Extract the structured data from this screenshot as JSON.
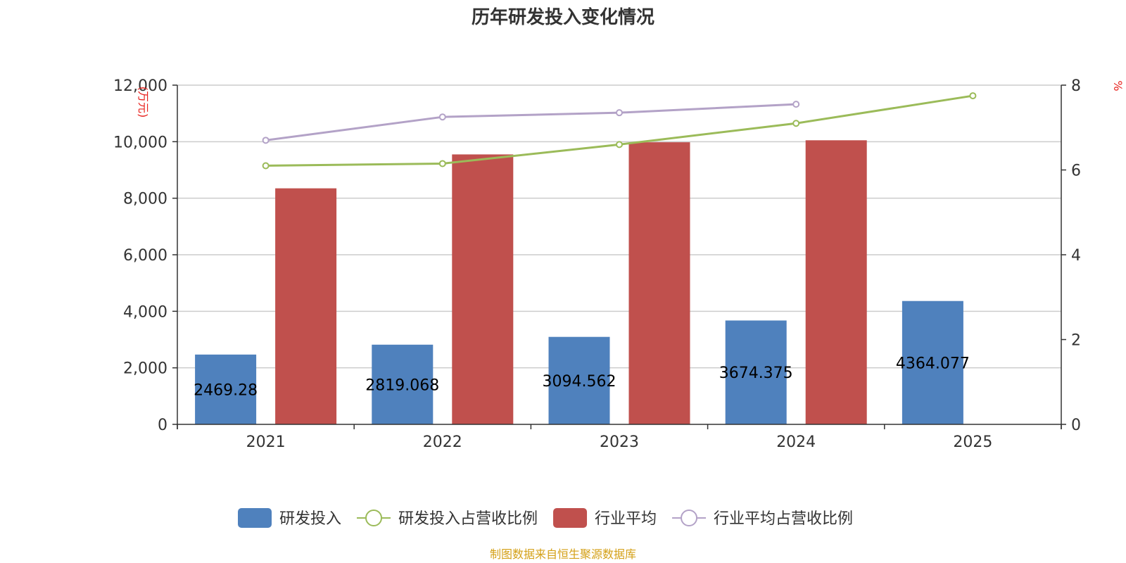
{
  "colors": {
    "rd": "#4f81bd",
    "rd_ratio": "#9bbb59",
    "industry": "#c0504d",
    "industry_ratio": "#b3a2c7",
    "unit_text": "#e8211d",
    "source_text": "#d4a017"
  },
  "chart_data": {
    "type": "bar",
    "title": "历年研发投入变化情况",
    "categories": [
      "2021",
      "2022",
      "2023",
      "2024",
      "2025"
    ],
    "y_left": {
      "unit": "(万元)",
      "range": [
        0,
        12000
      ],
      "ticks": [
        "0",
        "2,000",
        "4,000",
        "6,000",
        "8,000",
        "10,000",
        "12,000"
      ]
    },
    "y_right": {
      "unit": "%",
      "range": [
        0,
        8
      ],
      "ticks": [
        "0",
        "2",
        "4",
        "6",
        "8"
      ]
    },
    "grid": true,
    "legend_position": "bottom",
    "series": [
      {
        "name": "研发投入",
        "type": "bar",
        "axis": "left",
        "values": [
          2469.28,
          2819.068,
          3094.562,
          3674.375,
          4364.077
        ],
        "labels": [
          "2469.28",
          "2819.068",
          "3094.562",
          "3674.375",
          "4364.077"
        ]
      },
      {
        "name": "研发投入占营收比例",
        "type": "line",
        "axis": "right",
        "values": [
          6.1,
          6.15,
          6.6,
          7.1,
          7.75
        ]
      },
      {
        "name": "行业平均",
        "type": "bar",
        "axis": "left",
        "values": [
          8350,
          9550,
          9980,
          10050,
          null
        ]
      },
      {
        "name": "行业平均占营收比例",
        "type": "line",
        "axis": "right",
        "values": [
          6.7,
          7.25,
          7.35,
          7.55,
          null
        ]
      }
    ]
  },
  "source": "制图数据来自恒生聚源数据库"
}
